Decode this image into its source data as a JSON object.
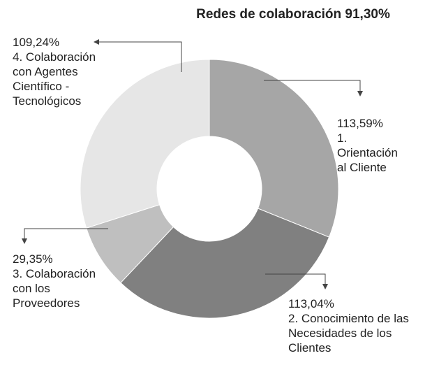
{
  "chart_data": {
    "type": "donut",
    "title": "Redes de colaboración 91,30%",
    "categories": [
      "1. Orientación al Cliente",
      "2. Conocimiento de las Necesidades de los  Clientes",
      "3. Colaboración con los Proveedores",
      "4. Colaboración con Agentes Científico - Tecnológicos"
    ],
    "values": [
      113.59,
      113.04,
      29.35,
      109.24
    ],
    "value_labels": [
      "113,59%",
      "113,04%",
      "29,35%",
      "109,24%"
    ],
    "colors": [
      "#a6a6a6",
      "#808080",
      "#bfbfbf",
      "#e6e6e6"
    ]
  }
}
